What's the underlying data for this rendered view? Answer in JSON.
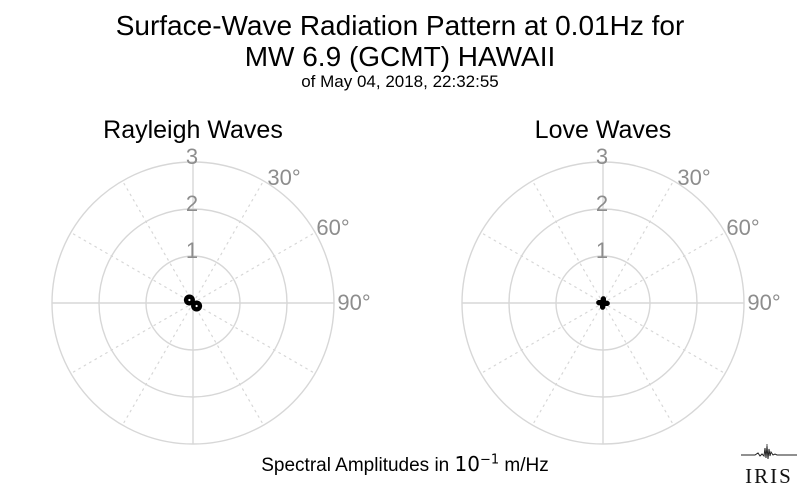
{
  "header": {
    "title_line1": "Surface-Wave Radiation Pattern at 0.01Hz for",
    "title_line2": "MW 6.9 (GCMT) HAWAII",
    "subtitle": "of May 04, 2018, 22:32:55"
  },
  "caption": {
    "prefix": "Spectral Amplitudes in ",
    "base": "10",
    "exponent": "−1",
    "suffix": " m/Hz"
  },
  "logo": {
    "text": "IRIS"
  },
  "colors": {
    "grid": "#d7d7d7",
    "tick_label": "#8d8d8d",
    "data": "#000000",
    "text": "#000000"
  },
  "chart_data": [
    {
      "type": "line",
      "subtype": "polar-radiation-pattern",
      "title": "Rayleigh Waves",
      "r_ticks": [
        "1",
        "2",
        "3"
      ],
      "r_max": 3,
      "r_units": "10^-1 m/Hz",
      "theta_ticks": [
        "30°",
        "60°",
        "90°"
      ],
      "theta_tick_angles_deg": [
        30,
        60,
        90
      ],
      "theta_zero": "north",
      "theta_direction": "clockwise",
      "grid": "on",
      "pattern": {
        "lobes": 2,
        "azimuth_deg": 130,
        "peak_amplitude": 0.2,
        "node_markers": true,
        "description": "tiny two-lobed (figure-eight) pattern near origin, lobes oriented NW-SE, peak ≈ 0.2 of radial unit"
      }
    },
    {
      "type": "line",
      "subtype": "polar-radiation-pattern",
      "title": "Love Waves",
      "r_ticks": [
        "1",
        "2",
        "3"
      ],
      "r_max": 3,
      "r_units": "10^-1 m/Hz",
      "theta_ticks": [
        "30°",
        "60°",
        "90°"
      ],
      "theta_tick_angles_deg": [
        30,
        60,
        90
      ],
      "theta_zero": "north",
      "theta_direction": "clockwise",
      "grid": "on",
      "pattern": {
        "lobes": 4,
        "azimuth_deg": 5,
        "peak_amplitude": 0.12,
        "node_markers": false,
        "description": "tiny four-lobed clover pattern near origin, petals roughly N/E/S/W, peak ≈ 0.12 of radial unit"
      }
    }
  ]
}
